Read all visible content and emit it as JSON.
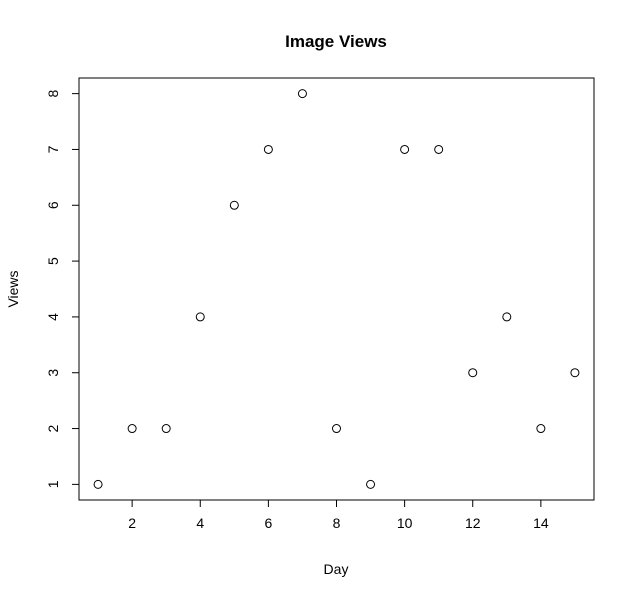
{
  "chart_data": {
    "type": "scatter",
    "title": "Image Views",
    "xlabel": "Day",
    "ylabel": "Views",
    "xlim": [
      0.44,
      15.56
    ],
    "ylim": [
      0.72,
      8.28
    ],
    "x_ticks": [
      2,
      4,
      6,
      8,
      10,
      12,
      14
    ],
    "y_ticks": [
      1,
      2,
      3,
      4,
      5,
      6,
      7,
      8
    ],
    "grid": false,
    "marker": "open-circle",
    "series": [
      {
        "x": [
          1,
          2,
          3,
          4,
          5,
          6,
          7,
          8,
          9,
          10,
          11,
          12,
          13,
          14,
          15
        ],
        "y": [
          1,
          2,
          2,
          4,
          6,
          7,
          8,
          2,
          1,
          7,
          7,
          3,
          4,
          2,
          3
        ]
      }
    ]
  }
}
